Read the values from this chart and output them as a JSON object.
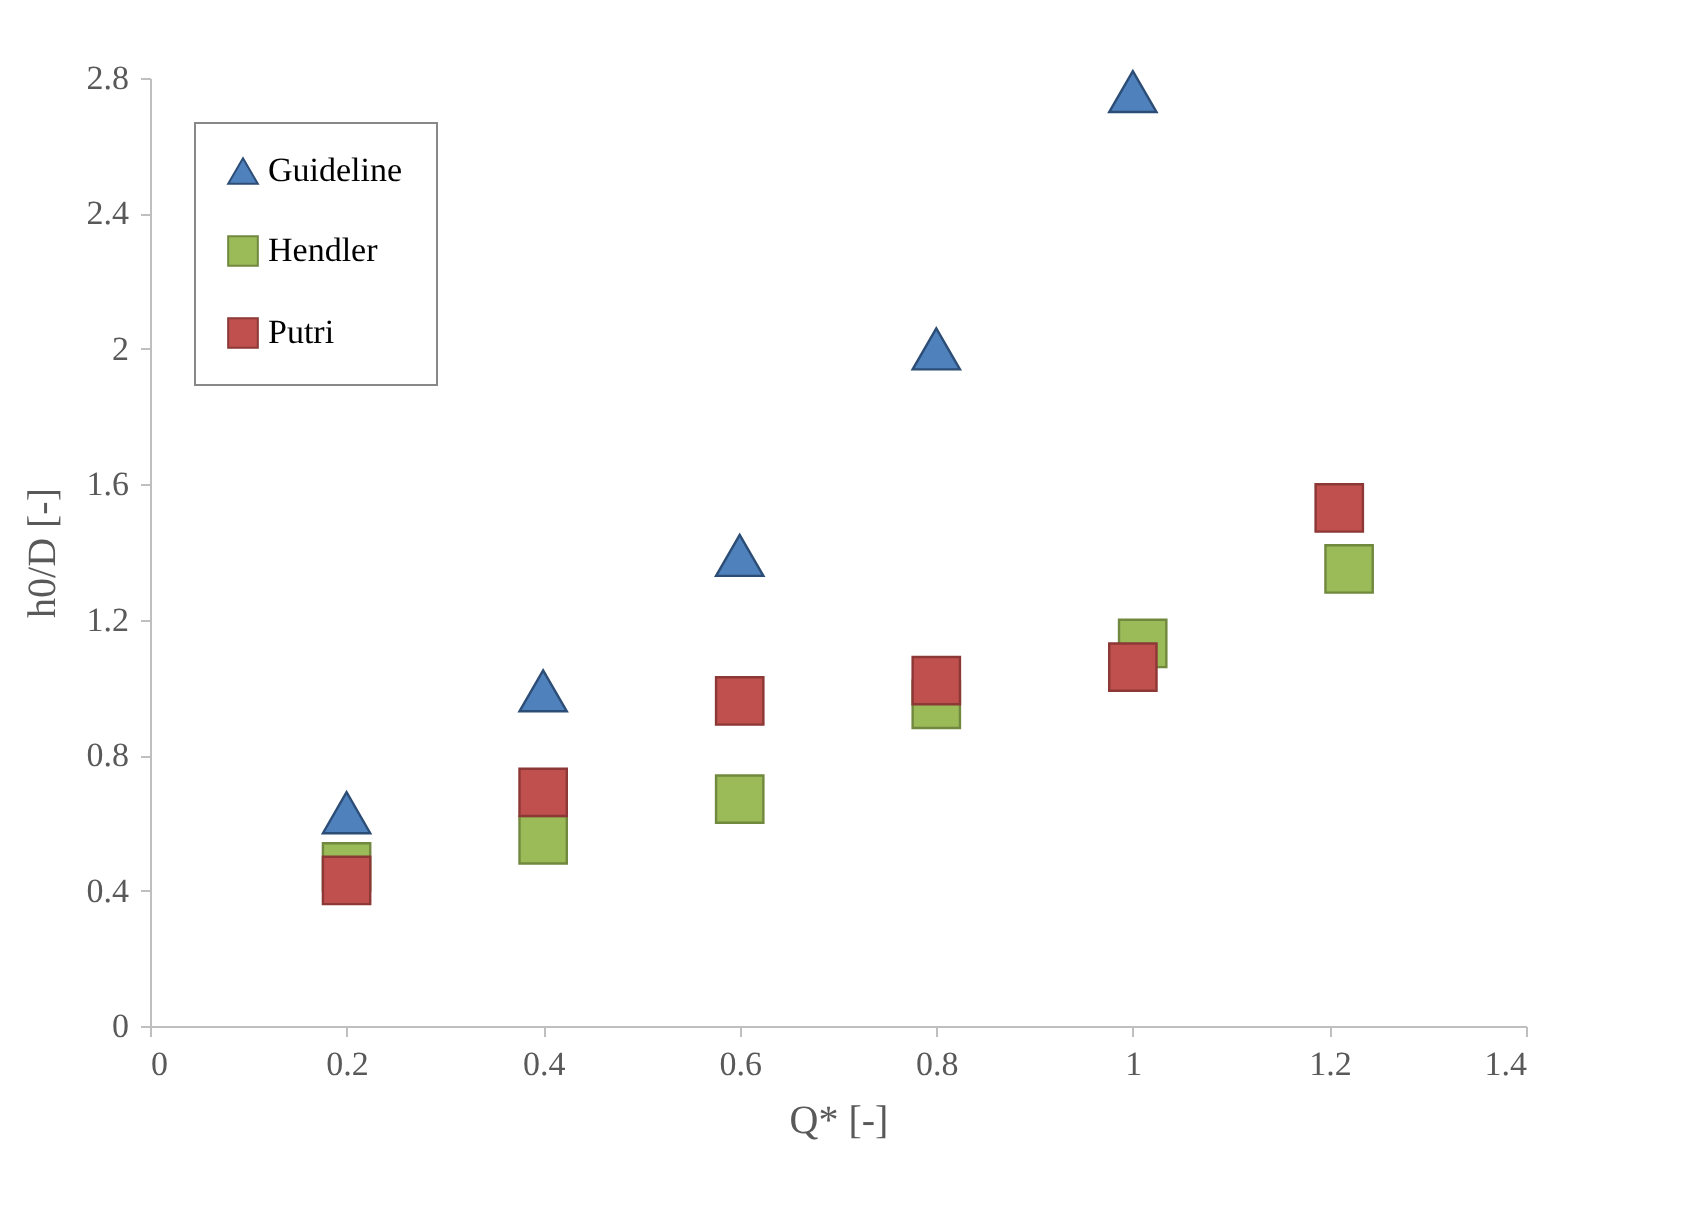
{
  "chart_data": {
    "type": "scatter",
    "xlabel": "Q* [-]",
    "ylabel": "h0/D [-]",
    "xlim": [
      0,
      1.4
    ],
    "ylim": [
      0,
      2.8
    ],
    "xticks": [
      0,
      0.2,
      0.4,
      0.6,
      0.8,
      1,
      1.2,
      1.4
    ],
    "yticks": [
      0,
      0.4,
      0.8,
      1.2,
      1.6,
      2,
      2.4,
      2.8
    ],
    "grid": false,
    "legend": "top left",
    "series": [
      {
        "name": "Guideline",
        "color": "#4f81bd",
        "marker": "triangle",
        "x": [
          0.2,
          0.4,
          0.6,
          0.8,
          1.0
        ],
        "values": [
          0.63,
          0.99,
          1.39,
          2.0,
          2.76
        ]
      },
      {
        "name": "Hendler",
        "color": "#9bbb59",
        "marker": "square",
        "x": [
          0.2,
          0.4,
          0.6,
          0.8,
          1.01,
          1.22
        ],
        "values": [
          0.47,
          0.55,
          0.67,
          0.95,
          1.13,
          1.35
        ]
      },
      {
        "name": "Putri",
        "color": "#c0504d",
        "marker": "square",
        "x": [
          0.2,
          0.4,
          0.6,
          0.8,
          1.0,
          1.21
        ],
        "values": [
          0.43,
          0.69,
          0.96,
          1.02,
          1.06,
          1.53
        ]
      }
    ]
  }
}
